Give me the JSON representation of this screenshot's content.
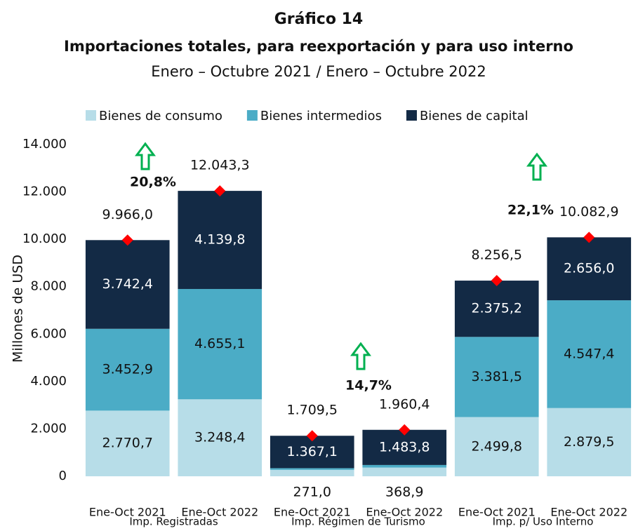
{
  "chart_data": {
    "type": "stacked_bar",
    "title": "Gráfico 14",
    "subtitle": "Importaciones totales, para reexportación y para uso interno",
    "period": "Enero – Octubre 2021 / Enero – Octubre 2022",
    "y_label": "Millones de USD",
    "categories": [
      "Ene-Oct 2021",
      "Ene-Oct 2022",
      "Ene-Oct 2021",
      "Ene-Oct 2022",
      "Ene-Oct 2021",
      "Ene-Oct 2022"
    ],
    "groups": [
      "Imp. Registradas",
      "Imp. Régimen de Turismo",
      "Imp. p/ Uso Interno"
    ],
    "series": [
      {
        "name": "Bienes de consumo",
        "color": "#b7dde8",
        "label_color": "#111111",
        "values": [
          2770.7,
          3248.4,
          271.0,
          368.9,
          2499.8,
          2879.5
        ],
        "value_labels": [
          "2.770,7",
          "3.248,4",
          "271,0",
          "368,9",
          "2.499,8",
          "2.879,5"
        ]
      },
      {
        "name": "Bienes intermedios",
        "color": "#4bacc6",
        "label_color": "#111111",
        "values": [
          3452.9,
          4655.1,
          71.4,
          107.7,
          3381.5,
          4547.4
        ],
        "value_labels": [
          "3.452,9",
          "4.655,1",
          null,
          null,
          "3.381,5",
          "4.547,4"
        ]
      },
      {
        "name": "Bienes de capital",
        "color": "#132a45",
        "label_color": "#ffffff",
        "values": [
          3742.4,
          4139.8,
          1367.1,
          1483.8,
          2375.2,
          2656.0
        ],
        "value_labels": [
          "3.742,4",
          "4.139,8",
          "1.367,1",
          "1.483,8",
          "2.375,2",
          "2.656,0"
        ]
      }
    ],
    "totals": {
      "color": "#ff0000",
      "values": [
        9966.0,
        12043.3,
        1709.5,
        1960.4,
        8256.5,
        10082.9
      ],
      "value_labels": [
        "9.966,0",
        "12.043,3",
        "1.709,5",
        "1.960,4",
        "8.256,5",
        "10.082,9"
      ]
    },
    "annotations": [
      "20,8%",
      "14,7%",
      "22,1%"
    ],
    "annotation_color": "#00b050",
    "ylim": [
      0,
      14000
    ],
    "yticks": [
      0,
      {
        "value": 2000,
        "label": "2.000"
      },
      {
        "value": 4000,
        "label": "4.000"
      },
      {
        "value": 6000,
        "label": "6.000"
      },
      {
        "value": 8000,
        "label": "8.000"
      },
      {
        "value": 10000,
        "label": "10.000"
      },
      {
        "value": 12000,
        "label": "12.000"
      },
      {
        "value": 14000,
        "label": "14.000"
      }
    ],
    "grid": false,
    "legend": "top"
  }
}
